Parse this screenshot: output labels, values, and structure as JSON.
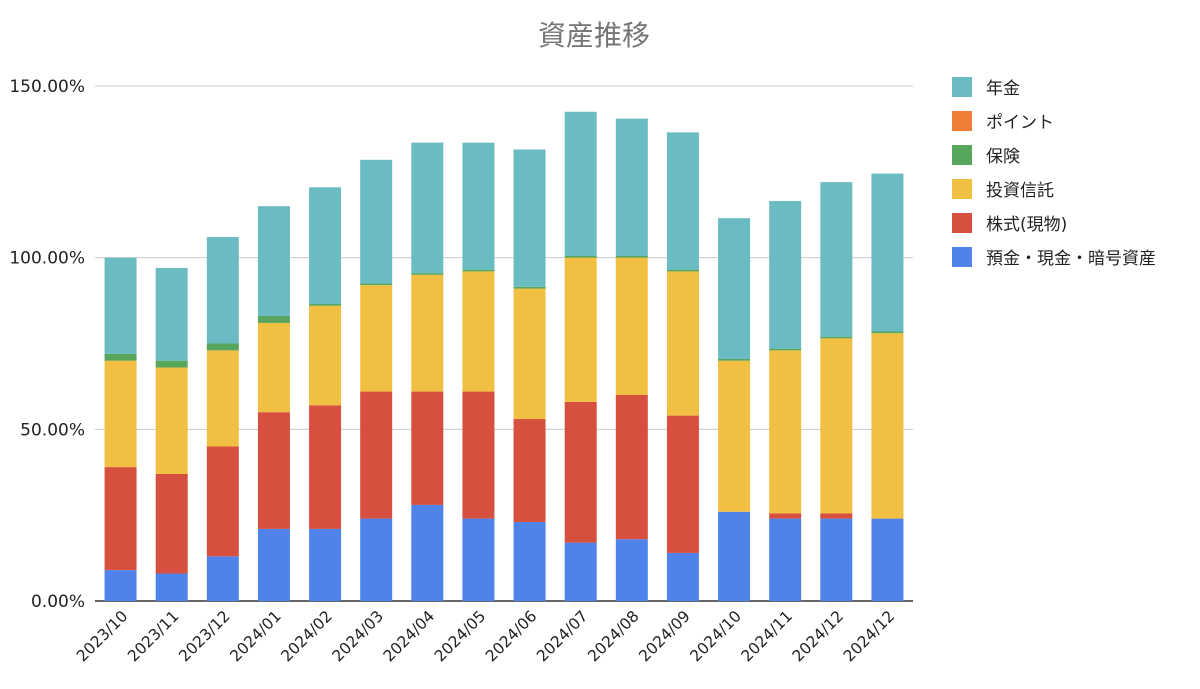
{
  "chart_data": {
    "type": "bar",
    "stacked": true,
    "title": "資産推移",
    "xlabel": "",
    "ylabel": "",
    "ylim": [
      0,
      1.5
    ],
    "yticks": [
      "0.00%",
      "50.00%",
      "100.00%",
      "150.00%"
    ],
    "grid": true,
    "legend_position": "right",
    "categories": [
      "2023/10",
      "2023/11",
      "2023/12",
      "2024/01",
      "2024/02",
      "2024/03",
      "2024/04",
      "2024/05",
      "2024/06",
      "2024/07",
      "2024/08",
      "2024/09",
      "2024/10",
      "2024/11",
      "2024/12",
      "2024/12"
    ],
    "series": [
      {
        "name": "預金・現金・暗号資産",
        "color": "#5083ea",
        "values": [
          0.09,
          0.08,
          0.13,
          0.21,
          0.21,
          0.24,
          0.28,
          0.24,
          0.23,
          0.17,
          0.18,
          0.14,
          0.26,
          0.24,
          0.24,
          0.24
        ]
      },
      {
        "name": "株式(現物)",
        "color": "#d64f3f",
        "values": [
          0.3,
          0.29,
          0.32,
          0.34,
          0.36,
          0.37,
          0.33,
          0.37,
          0.3,
          0.41,
          0.42,
          0.4,
          0.0,
          0.015,
          0.015,
          0.0
        ]
      },
      {
        "name": "投資信託",
        "color": "#f1bf42",
        "values": [
          0.31,
          0.31,
          0.28,
          0.26,
          0.29,
          0.31,
          0.34,
          0.35,
          0.38,
          0.42,
          0.4,
          0.42,
          0.44,
          0.475,
          0.51,
          0.54
        ]
      },
      {
        "name": "保険",
        "color": "#58a55c",
        "values": [
          0.02,
          0.02,
          0.02,
          0.02,
          0.005,
          0.005,
          0.005,
          0.005,
          0.005,
          0.005,
          0.005,
          0.005,
          0.005,
          0.005,
          0.005,
          0.005
        ]
      },
      {
        "name": "ポイント",
        "color": "#ee7d35",
        "values": [
          0,
          0,
          0,
          0,
          0,
          0,
          0,
          0,
          0,
          0,
          0,
          0,
          0,
          0,
          0,
          0
        ]
      },
      {
        "name": "年金",
        "color": "#6bbbc3",
        "values": [
          0.28,
          0.27,
          0.31,
          0.32,
          0.34,
          0.36,
          0.38,
          0.37,
          0.4,
          0.42,
          0.4,
          0.4,
          0.41,
          0.43,
          0.45,
          0.46
        ]
      }
    ],
    "legend_order": [
      "年金",
      "ポイント",
      "保険",
      "投資信託",
      "株式(現物)",
      "預金・現金・暗号資産"
    ]
  }
}
